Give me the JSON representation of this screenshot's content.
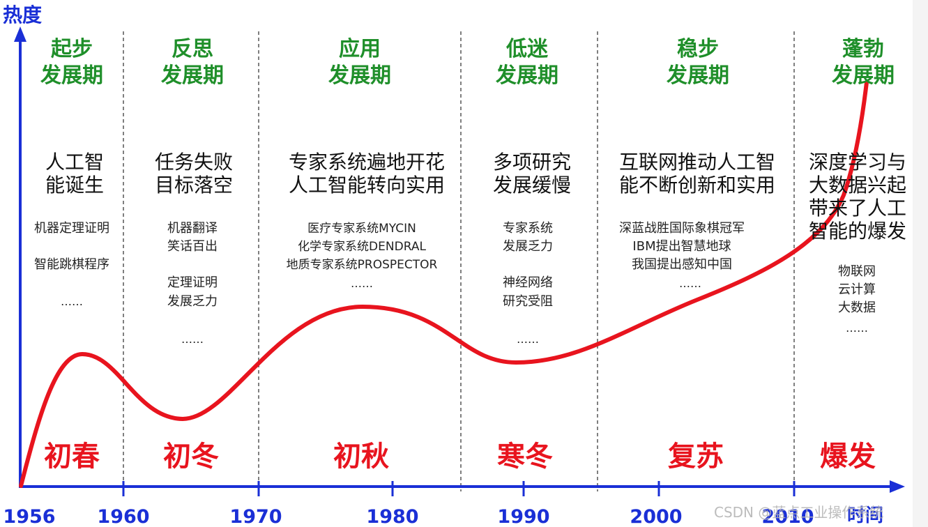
{
  "axis": {
    "y_label": "热度",
    "x_label": "时间",
    "ticks": [
      "1956",
      "1960",
      "1970",
      "1980",
      "1990",
      "2000",
      "2010"
    ]
  },
  "periods": [
    {
      "title_line1": "起步",
      "title_line2": "发展期",
      "event_lines": [
        "人工智",
        "能诞生"
      ],
      "detail_lines": [
        "机器定理证明",
        "",
        "智能跳棋程序",
        "",
        "……"
      ],
      "season": "初春"
    },
    {
      "title_line1": "反思",
      "title_line2": "发展期",
      "event_lines": [
        "任务失败",
        "目标落空"
      ],
      "detail_lines": [
        "机器翻译",
        "笑话百出",
        "",
        "定理证明",
        "发展乏力",
        "",
        "……"
      ],
      "season": "初冬"
    },
    {
      "title_line1": "应用",
      "title_line2": "发展期",
      "event_lines": [
        "专家系统遍地开花",
        "人工智能转向实用"
      ],
      "detail_lines": [
        "医疗专家系统MYCIN",
        "化学专家系统DENDRAL",
        "地质专家系统PROSPECTOR",
        "……"
      ],
      "season": "初秋"
    },
    {
      "title_line1": "低迷",
      "title_line2": "发展期",
      "event_lines": [
        "多项研究",
        "发展缓慢"
      ],
      "detail_lines": [
        "专家系统",
        "发展乏力",
        "",
        "神经网络",
        "研究受阻",
        "",
        "……"
      ],
      "season": "寒冬"
    },
    {
      "title_line1": "稳步",
      "title_line2": "发展期",
      "event_lines": [
        "互联网推动人工智",
        "能不断创新和实用"
      ],
      "detail_lines": [
        "深蓝战胜国际象棋冠军",
        "IBM提出智慧地球",
        "我国提出感知中国",
        "……"
      ],
      "season": "复苏"
    },
    {
      "title_line1": "蓬勃",
      "title_line2": "发展期",
      "event_lines": [
        "深度学习与",
        "大数据兴起",
        "带来了人工",
        "智能的爆发"
      ],
      "detail_lines": [
        "物联网",
        "云计算",
        "大数据",
        "……"
      ],
      "season": "爆发"
    }
  ],
  "watermark": "CSDN @蓝点工业操作系统",
  "colors": {
    "axis": "#1a2fd6",
    "title": "#1f8f2a",
    "curve": "#e8141e",
    "season": "#e8141e",
    "text": "#111111",
    "detail": "#222222",
    "divider": "#555555"
  }
}
